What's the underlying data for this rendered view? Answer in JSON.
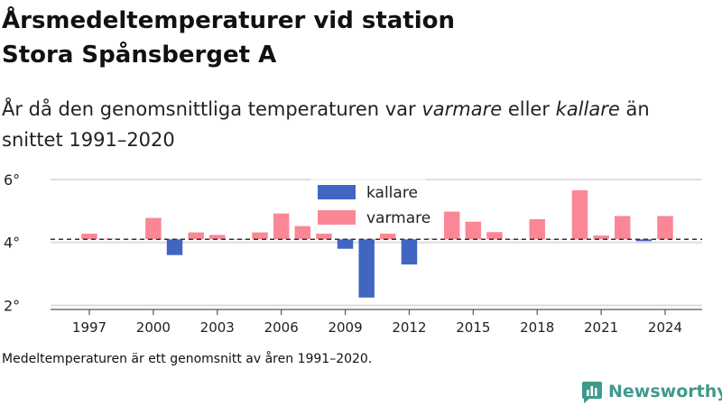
{
  "title_line1": "Årsmedeltemperaturer vid station",
  "title_line2": "Stora Spånsberget A",
  "subtitle": {
    "part1": "År då den genomsnittliga temperaturen var ",
    "warmer": "varmare",
    "part2": " eller ",
    "colder": "kallare",
    "part3": " än snittet 1991–2020"
  },
  "footnote": "Medeltemperaturen är ett genomsnitt av åren 1991–2020.",
  "logo": "Newsworthy",
  "colors": {
    "warm": "#fb8796",
    "cold": "#4166c2",
    "brand": "#3f9a8c"
  },
  "chart_data": {
    "type": "bar",
    "baseline": 4.1,
    "ylim": [
      1.9,
      6.2
    ],
    "yticks": [
      2,
      4,
      6
    ],
    "ytick_labels": [
      "2°",
      "4°",
      "6°"
    ],
    "xticks": [
      1997,
      2000,
      2003,
      2006,
      2009,
      2012,
      2015,
      2018,
      2021,
      2024
    ],
    "legend": [
      {
        "name": "kallare",
        "color": "#4166c2"
      },
      {
        "name": "varmare",
        "color": "#fb8796"
      }
    ],
    "years": [
      1997,
      1998,
      1999,
      2000,
      2001,
      2002,
      2003,
      2004,
      2005,
      2006,
      2007,
      2008,
      2009,
      2010,
      2011,
      2012,
      2013,
      2014,
      2015,
      2016,
      2017,
      2018,
      2019,
      2020,
      2021,
      2022,
      2023,
      2024
    ],
    "values": [
      4.28,
      4.12,
      4.11,
      4.78,
      3.6,
      4.32,
      4.24,
      4.1,
      4.32,
      4.92,
      4.52,
      4.28,
      3.8,
      2.25,
      4.28,
      3.3,
      4.12,
      4.98,
      4.66,
      4.33,
      4.1,
      4.74,
      4.1,
      5.66,
      4.22,
      4.84,
      4.04,
      4.84
    ]
  }
}
